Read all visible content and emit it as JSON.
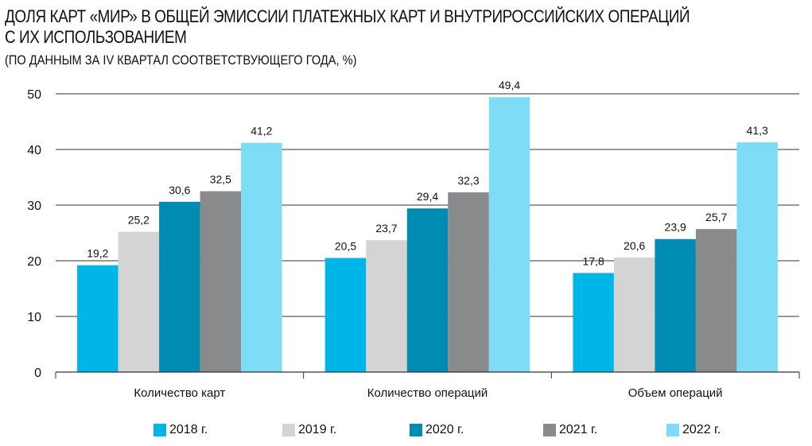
{
  "chart_data": {
    "type": "bar",
    "title": "ДОЛЯ КАРТ «МИР» В ОБЩЕЙ ЭМИССИИ ПЛАТЕЖНЫХ КАРТ И ВНУТРИРОССИЙСКИХ ОПЕРАЦИЙ",
    "title_line2": "С ИХ ИСПОЛЬЗОВАНИЕМ",
    "subtitle": "(ПО ДАННЫМ ЗА IV КВАРТАЛ СООТВЕТСТВУЮЩЕГО ГОДА, %)",
    "categories": [
      "Количество карт",
      "Количество операций",
      "Объем операций"
    ],
    "series": [
      {
        "name": "2018 г.",
        "values": [
          19.2,
          20.5,
          17.8
        ],
        "color": "#00b5e8"
      },
      {
        "name": "2019 г.",
        "values": [
          25.2,
          23.7,
          20.6
        ],
        "color": "#d4d4d4"
      },
      {
        "name": "2020 г.",
        "values": [
          30.6,
          29.4,
          23.9
        ],
        "color": "#008bb3"
      },
      {
        "name": "2021 г.",
        "values": [
          32.5,
          32.3,
          25.7
        ],
        "color": "#898a8c"
      },
      {
        "name": "2022 г.",
        "values": [
          41.2,
          49.4,
          41.3
        ],
        "color": "#7fdcf6"
      }
    ],
    "ylim": [
      0,
      50
    ],
    "yticks": [
      0,
      10,
      20,
      30,
      40,
      50
    ],
    "grid": true,
    "legend": "bottom"
  }
}
